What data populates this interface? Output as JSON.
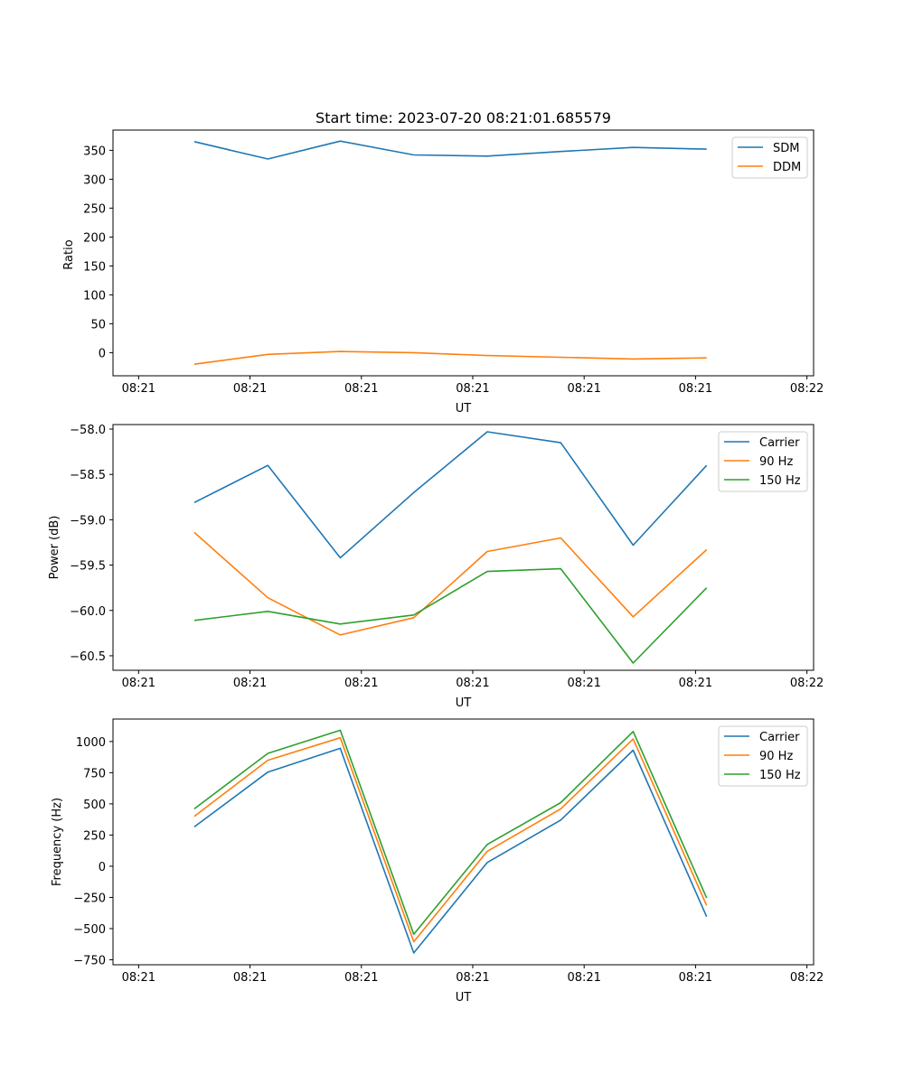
{
  "chart_data": [
    {
      "type": "line",
      "title": "Start time: 2023-07-20 08:21:01.685579",
      "xlabel": "UT",
      "ylabel": "Ratio",
      "x_tick_labels": [
        "08:21",
        "08:21",
        "08:21",
        "08:21",
        "08:21",
        "08:21",
        "08:22"
      ],
      "y_ticks": [
        0,
        50,
        100,
        150,
        200,
        250,
        300,
        350
      ],
      "ylim": [
        -40,
        385
      ],
      "xlim": [
        -0.23,
        6.06
      ],
      "x": [
        0.5,
        1.16,
        1.81,
        2.47,
        3.13,
        3.79,
        4.44,
        5.1
      ],
      "series": [
        {
          "name": "SDM",
          "color": "#1f77b4",
          "values": [
            365,
            335,
            366,
            342,
            340,
            348,
            355,
            352
          ]
        },
        {
          "name": "DDM",
          "color": "#ff7f0e",
          "values": [
            -20,
            -3,
            2,
            0,
            -5,
            -8,
            -11,
            -9
          ]
        }
      ],
      "legend": "top-right",
      "grid": false
    },
    {
      "type": "line",
      "title": "",
      "xlabel": "UT",
      "ylabel": "Power (dB)",
      "x_tick_labels": [
        "08:21",
        "08:21",
        "08:21",
        "08:21",
        "08:21",
        "08:21",
        "08:22"
      ],
      "y_ticks": [
        -58.0,
        -58.5,
        -59.0,
        -59.5,
        -60.0,
        -60.5
      ],
      "y_tick_labels": [
        "−58.0",
        "−58.5",
        "−59.0",
        "−59.5",
        "−60.0",
        "−60.5"
      ],
      "ylim": [
        -60.66,
        -57.95
      ],
      "xlim": [
        -0.23,
        6.06
      ],
      "x": [
        0.5,
        1.16,
        1.81,
        2.47,
        3.13,
        3.79,
        4.44,
        5.1
      ],
      "series": [
        {
          "name": "Carrier",
          "color": "#1f77b4",
          "values": [
            -58.81,
            -58.4,
            -59.42,
            -58.7,
            -58.03,
            -58.15,
            -59.28,
            -58.4
          ]
        },
        {
          "name": "90 Hz",
          "color": "#ff7f0e",
          "values": [
            -59.14,
            -59.86,
            -60.27,
            -60.08,
            -59.35,
            -59.2,
            -60.07,
            -59.33
          ]
        },
        {
          "name": "150 Hz",
          "color": "#2ca02c",
          "values": [
            -60.11,
            -60.01,
            -60.15,
            -60.05,
            -59.57,
            -59.54,
            -60.58,
            -59.75
          ]
        }
      ],
      "legend": "top-right",
      "grid": false
    },
    {
      "type": "line",
      "title": "",
      "xlabel": "UT",
      "ylabel": "Frequency (Hz)",
      "x_tick_labels": [
        "08:21",
        "08:21",
        "08:21",
        "08:21",
        "08:21",
        "08:21",
        "08:22"
      ],
      "y_ticks": [
        1000,
        750,
        500,
        250,
        0,
        -250,
        -500,
        -750
      ],
      "y_tick_labels": [
        "1000",
        "750",
        "500",
        "250",
        "0",
        "−250",
        "−500",
        "−750"
      ],
      "ylim": [
        -790,
        1180
      ],
      "xlim": [
        -0.23,
        6.06
      ],
      "x": [
        0.5,
        1.16,
        1.81,
        2.47,
        3.13,
        3.79,
        4.44,
        5.1
      ],
      "series": [
        {
          "name": "Carrier",
          "color": "#1f77b4",
          "values": [
            315,
            755,
            945,
            -695,
            30,
            370,
            930,
            -405
          ]
        },
        {
          "name": "90 Hz",
          "color": "#ff7f0e",
          "values": [
            400,
            850,
            1030,
            -605,
            120,
            460,
            1020,
            -315
          ]
        },
        {
          "name": "150 Hz",
          "color": "#2ca02c",
          "values": [
            460,
            905,
            1090,
            -545,
            175,
            510,
            1080,
            -255
          ]
        }
      ],
      "legend": "top-right",
      "grid": false
    }
  ]
}
